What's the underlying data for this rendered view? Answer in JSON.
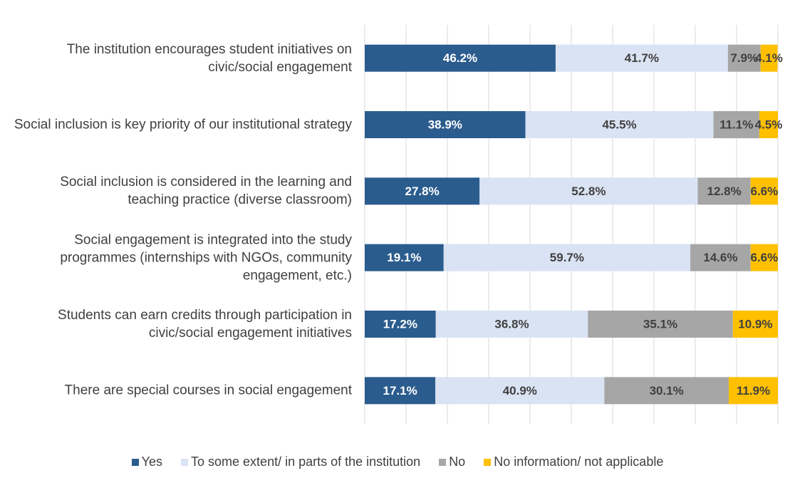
{
  "chart_data": {
    "type": "stacked-bar-horizontal",
    "categories": [
      "The institution encourages student initiatives on civic/social engagement",
      "Social inclusion is key priority of our institutional strategy",
      "Social inclusion is considered in the learning and teaching practice (diverse classroom)",
      "Social engagement is integrated into the study programmes (internships with NGOs, community engagement, etc.)",
      "Students can earn credits through participation in civic/social engagement initiatives",
      "There are special courses in social engagement"
    ],
    "series": [
      {
        "name": "Yes",
        "color": "#2b5c8e",
        "label_color": "#ffffff",
        "values": [
          46.2,
          38.9,
          27.8,
          19.1,
          17.2,
          17.1
        ],
        "value_labels": [
          "46.2%",
          "38.9%",
          "27.8%",
          "19.1%",
          "17.2%",
          "17.1%"
        ]
      },
      {
        "name": "To some extent/ in parts of the institution",
        "color": "#dae3f3",
        "label_color": "#404040",
        "values": [
          41.7,
          45.5,
          52.8,
          59.7,
          36.8,
          40.9
        ],
        "value_labels": [
          "41.7%",
          "45.5%",
          "52.8%",
          "59.7%",
          "36.8%",
          "40.9%"
        ]
      },
      {
        "name": "No",
        "color": "#a6a6a6",
        "label_color": "#404040",
        "values": [
          7.9,
          11.1,
          12.8,
          14.6,
          35.1,
          30.1
        ],
        "value_labels": [
          "7.9%",
          "11.1%",
          "12.8%",
          "14.6%",
          "35.1%",
          "30.1%"
        ]
      },
      {
        "name": "No information/ not applicable",
        "color": "#ffc000",
        "label_color": "#404040",
        "values": [
          4.1,
          4.5,
          6.6,
          6.6,
          10.9,
          11.9
        ],
        "value_labels": [
          "4.1%",
          "4.5%",
          "6.6%",
          "6.6%",
          "10.9%",
          "11.9%"
        ]
      }
    ],
    "xlim": [
      0,
      100
    ],
    "xticks": [
      0,
      10,
      20,
      30,
      40,
      50,
      60,
      70,
      80,
      90,
      100
    ],
    "grid": true
  }
}
